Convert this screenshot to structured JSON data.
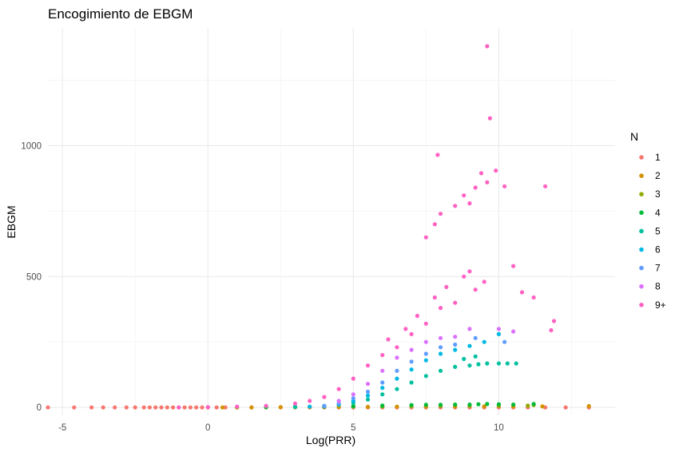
{
  "chart_data": {
    "type": "scatter",
    "title": "Encogimiento de EBGM",
    "xlabel": "Log(PRR)",
    "ylabel": "EBGM",
    "xlim": [
      -5.5,
      14
    ],
    "ylim": [
      -30,
      1450
    ],
    "x_ticks": [
      -5,
      0,
      5,
      10
    ],
    "y_ticks": [
      0,
      500,
      1000
    ],
    "grid": true,
    "legend": {
      "title": "N",
      "position": "right"
    },
    "series": [
      {
        "name": "1",
        "color": "#F8766D",
        "points": [
          [
            -5.5,
            0
          ],
          [
            -4.6,
            0
          ],
          [
            -4.0,
            0
          ],
          [
            -3.6,
            0
          ],
          [
            -3.2,
            0
          ],
          [
            -2.8,
            0
          ],
          [
            -2.5,
            0
          ],
          [
            -2.2,
            0
          ],
          [
            -2.0,
            0
          ],
          [
            -1.8,
            0
          ],
          [
            -1.6,
            0
          ],
          [
            -1.4,
            0
          ],
          [
            -1.2,
            0
          ],
          [
            -1.0,
            0
          ],
          [
            -0.8,
            0
          ],
          [
            -0.6,
            0
          ],
          [
            -0.4,
            0
          ],
          [
            -0.2,
            0
          ],
          [
            0.0,
            0
          ],
          [
            0.3,
            0
          ],
          [
            0.6,
            0
          ],
          [
            1.0,
            0
          ],
          [
            1.5,
            0
          ],
          [
            2.0,
            0
          ],
          [
            2.5,
            0
          ],
          [
            3.0,
            0
          ],
          [
            3.5,
            0
          ],
          [
            4.0,
            0
          ],
          [
            4.5,
            0
          ],
          [
            5.0,
            0
          ],
          [
            5.5,
            0
          ],
          [
            6.0,
            0
          ],
          [
            6.5,
            0
          ],
          [
            7.0,
            0
          ],
          [
            7.5,
            0
          ],
          [
            8.0,
            0
          ],
          [
            8.5,
            0
          ],
          [
            9.0,
            0
          ],
          [
            9.5,
            0
          ],
          [
            10.0,
            0
          ],
          [
            10.5,
            0
          ],
          [
            11.0,
            0
          ],
          [
            11.6,
            0
          ],
          [
            12.3,
            0
          ],
          [
            13.1,
            0
          ]
        ]
      },
      {
        "name": "2",
        "color": "#D39200",
        "points": [
          [
            0.5,
            0
          ],
          [
            1.5,
            0
          ],
          [
            2.5,
            1
          ],
          [
            3.5,
            1
          ],
          [
            4.5,
            2
          ],
          [
            5.5,
            2
          ],
          [
            6.5,
            3
          ],
          [
            7.5,
            3
          ],
          [
            8.5,
            4
          ],
          [
            9.5,
            4
          ],
          [
            10.5,
            4
          ],
          [
            11.5,
            4
          ],
          [
            13.1,
            5
          ]
        ]
      },
      {
        "name": "3",
        "color": "#93AA00",
        "points": [
          [
            1.0,
            0
          ],
          [
            2.0,
            1
          ],
          [
            3.0,
            1
          ],
          [
            4.0,
            2
          ],
          [
            5.0,
            3
          ],
          [
            6.0,
            4
          ],
          [
            7.0,
            5
          ],
          [
            8.0,
            6
          ],
          [
            9.0,
            6
          ],
          [
            10.0,
            6
          ],
          [
            11.0,
            7
          ],
          [
            11.2,
            9
          ]
        ]
      },
      {
        "name": "4",
        "color": "#00BA38",
        "points": [
          [
            2.0,
            1
          ],
          [
            3.0,
            2
          ],
          [
            4.0,
            3
          ],
          [
            5.0,
            5
          ],
          [
            6.0,
            7
          ],
          [
            7.0,
            9
          ],
          [
            7.5,
            10
          ],
          [
            8.0,
            10
          ],
          [
            8.5,
            11
          ],
          [
            9.0,
            11
          ],
          [
            9.3,
            12
          ],
          [
            9.6,
            13
          ],
          [
            10.0,
            12
          ],
          [
            10.5,
            11
          ],
          [
            11.2,
            13
          ]
        ]
      },
      {
        "name": "5",
        "color": "#00C19F",
        "points": [
          [
            3.0,
            2
          ],
          [
            4.0,
            6
          ],
          [
            4.5,
            10
          ],
          [
            5.0,
            18
          ],
          [
            5.5,
            30
          ],
          [
            6.0,
            50
          ],
          [
            6.5,
            70
          ],
          [
            7.0,
            95
          ],
          [
            7.5,
            120
          ],
          [
            8.0,
            140
          ],
          [
            8.5,
            155
          ],
          [
            9.0,
            160
          ],
          [
            9.3,
            165
          ],
          [
            9.6,
            168
          ],
          [
            10.0,
            168
          ],
          [
            10.3,
            168
          ],
          [
            10.6,
            168
          ],
          [
            8.8,
            185
          ],
          [
            9.2,
            195
          ]
        ]
      },
      {
        "name": "6",
        "color": "#00B9E3",
        "points": [
          [
            3.5,
            3
          ],
          [
            4.5,
            12
          ],
          [
            5.0,
            25
          ],
          [
            5.5,
            45
          ],
          [
            6.0,
            75
          ],
          [
            6.5,
            110
          ],
          [
            7.0,
            145
          ],
          [
            7.5,
            180
          ],
          [
            8.0,
            205
          ],
          [
            8.5,
            220
          ],
          [
            9.0,
            235
          ],
          [
            9.5,
            250
          ],
          [
            10.0,
            280
          ]
        ]
      },
      {
        "name": "7",
        "color": "#619CFF",
        "points": [
          [
            4.0,
            5
          ],
          [
            4.5,
            15
          ],
          [
            5.0,
            35
          ],
          [
            5.5,
            60
          ],
          [
            6.0,
            95
          ],
          [
            6.5,
            140
          ],
          [
            7.0,
            175
          ],
          [
            7.5,
            205
          ],
          [
            8.0,
            230
          ],
          [
            8.5,
            240
          ],
          [
            9.2,
            265
          ],
          [
            10.2,
            250
          ]
        ]
      },
      {
        "name": "8",
        "color": "#DB72FB",
        "points": [
          [
            4.5,
            25
          ],
          [
            5.0,
            50
          ],
          [
            5.5,
            90
          ],
          [
            6.0,
            140
          ],
          [
            6.5,
            190
          ],
          [
            7.0,
            220
          ],
          [
            7.5,
            250
          ],
          [
            8.0,
            265
          ],
          [
            8.5,
            270
          ],
          [
            9.0,
            300
          ],
          [
            10.0,
            300
          ],
          [
            10.5,
            290
          ]
        ]
      },
      {
        "name": "9+",
        "color": "#FF61C3",
        "points": [
          [
            -1.0,
            0
          ],
          [
            0.0,
            1
          ],
          [
            1.0,
            3
          ],
          [
            2.0,
            6
          ],
          [
            3.0,
            15
          ],
          [
            3.5,
            25
          ],
          [
            4.0,
            40
          ],
          [
            4.5,
            70
          ],
          [
            5.0,
            110
          ],
          [
            5.5,
            160
          ],
          [
            6.0,
            200
          ],
          [
            6.2,
            260
          ],
          [
            6.5,
            230
          ],
          [
            6.8,
            300
          ],
          [
            7.0,
            280
          ],
          [
            7.2,
            350
          ],
          [
            7.5,
            320
          ],
          [
            7.8,
            420
          ],
          [
            8.0,
            380
          ],
          [
            8.2,
            460
          ],
          [
            8.5,
            400
          ],
          [
            8.8,
            500
          ],
          [
            9.0,
            520
          ],
          [
            9.2,
            450
          ],
          [
            9.5,
            480
          ],
          [
            7.5,
            650
          ],
          [
            7.8,
            700
          ],
          [
            8.0,
            740
          ],
          [
            8.5,
            770
          ],
          [
            8.8,
            810
          ],
          [
            9.2,
            840
          ],
          [
            9.6,
            860
          ],
          [
            9.0,
            780
          ],
          [
            7.9,
            965
          ],
          [
            9.4,
            895
          ],
          [
            9.9,
            905
          ],
          [
            10.2,
            845
          ],
          [
            11.6,
            845
          ],
          [
            9.7,
            1105
          ],
          [
            9.6,
            1380
          ],
          [
            10.5,
            540
          ],
          [
            11.2,
            420
          ],
          [
            11.9,
            330
          ],
          [
            11.8,
            295
          ],
          [
            10.8,
            440
          ]
        ]
      }
    ]
  }
}
